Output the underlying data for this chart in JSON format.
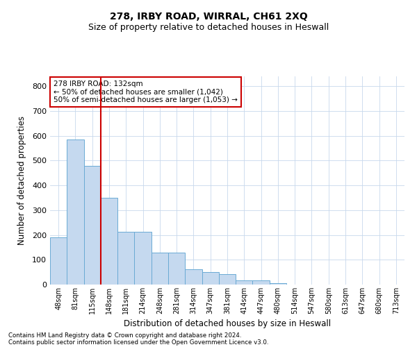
{
  "title1": "278, IRBY ROAD, WIRRAL, CH61 2XQ",
  "title2": "Size of property relative to detached houses in Heswall",
  "xlabel": "Distribution of detached houses by size in Heswall",
  "ylabel": "Number of detached properties",
  "categories": [
    "48sqm",
    "81sqm",
    "115sqm",
    "148sqm",
    "181sqm",
    "214sqm",
    "248sqm",
    "281sqm",
    "314sqm",
    "347sqm",
    "381sqm",
    "414sqm",
    "447sqm",
    "480sqm",
    "514sqm",
    "547sqm",
    "580sqm",
    "613sqm",
    "647sqm",
    "680sqm",
    "713sqm"
  ],
  "values": [
    190,
    585,
    480,
    350,
    213,
    213,
    128,
    128,
    62,
    50,
    43,
    18,
    18,
    5,
    0,
    0,
    0,
    0,
    0,
    0,
    0
  ],
  "bar_color": "#c5d9ef",
  "bar_edge_color": "#6aaad4",
  "vline_color": "#cc0000",
  "ylim": [
    0,
    840
  ],
  "yticks": [
    0,
    100,
    200,
    300,
    400,
    500,
    600,
    700,
    800
  ],
  "annotation_line1": "278 IRBY ROAD: 132sqm",
  "annotation_line2": "← 50% of detached houses are smaller (1,042)",
  "annotation_line3": "50% of semi-detached houses are larger (1,053) →",
  "annotation_box_color": "#cc0000",
  "footer1": "Contains HM Land Registry data © Crown copyright and database right 2024.",
  "footer2": "Contains public sector information licensed under the Open Government Licence v3.0.",
  "background_color": "#ffffff",
  "grid_color": "#c8d8ec"
}
